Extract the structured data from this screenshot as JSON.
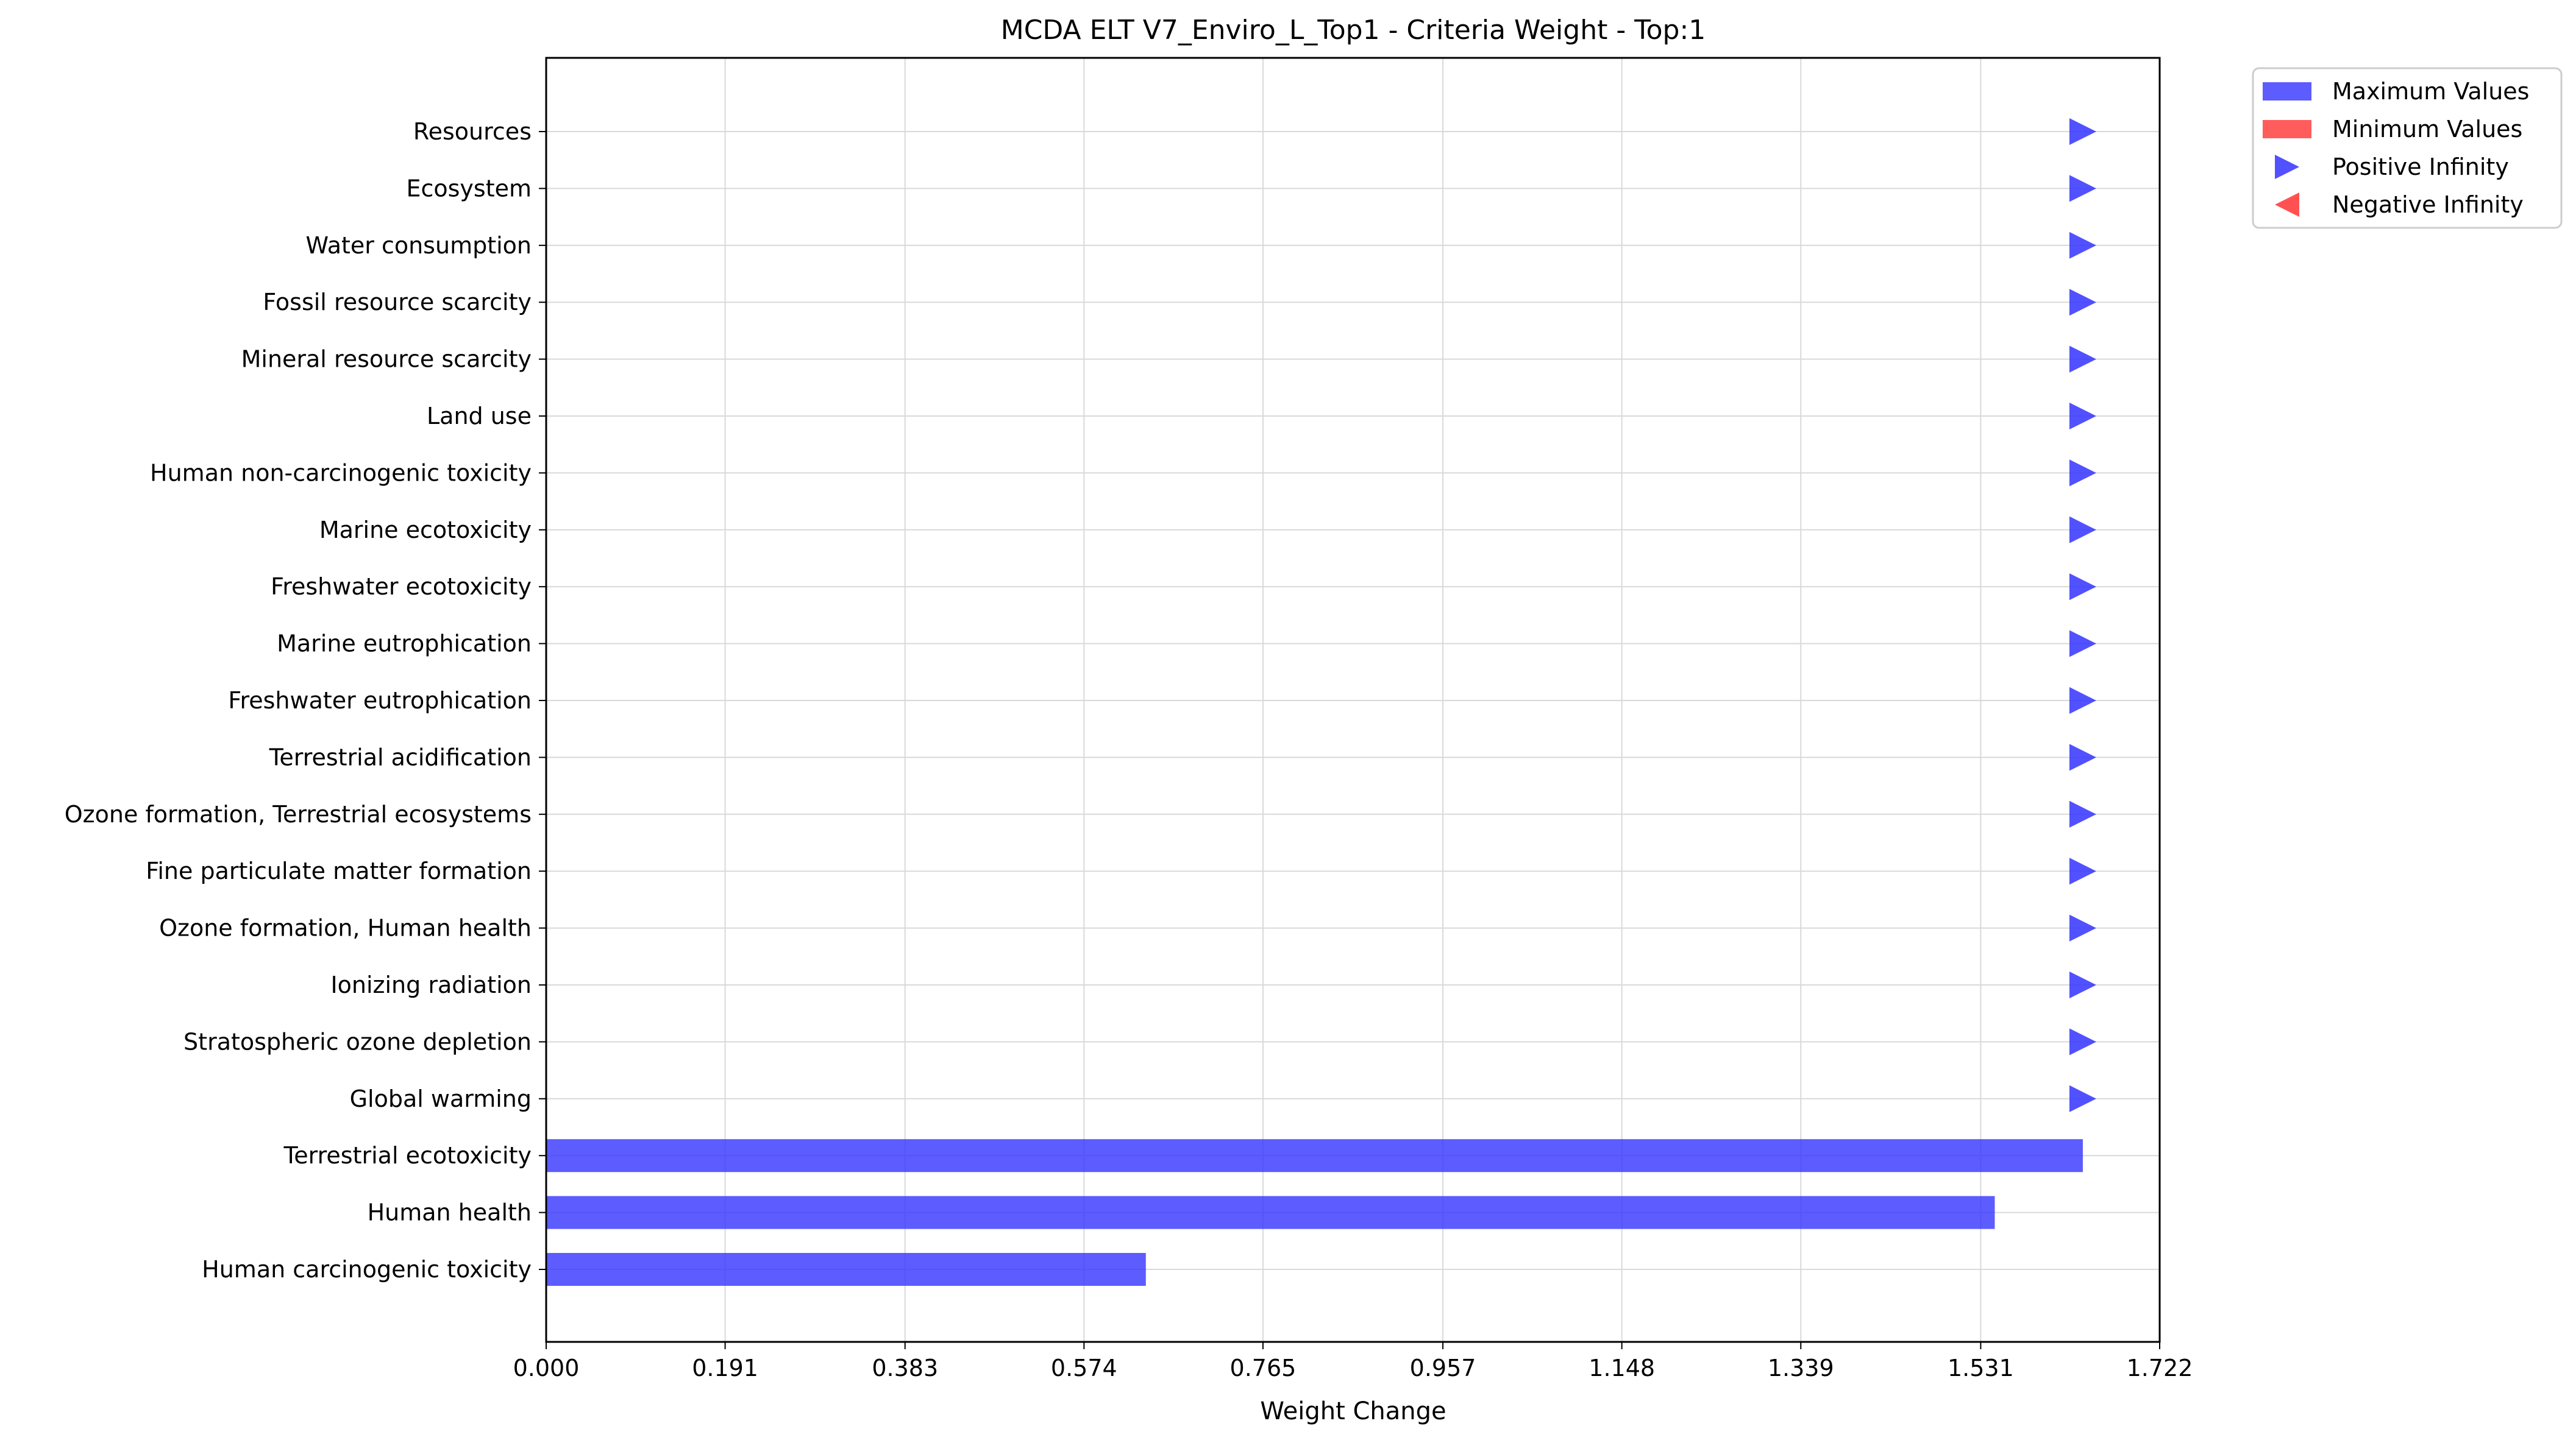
{
  "chart_data": {
    "type": "bar",
    "orientation": "horizontal",
    "title": "MCDA ELT V7_Enviro_L_Top1 - Criteria Weight - Top:1",
    "xlabel": "Weight Change",
    "ylabel": "",
    "xlim": [
      0,
      1.722
    ],
    "xticks": [
      "0.000",
      "0.191",
      "0.383",
      "0.574",
      "0.765",
      "0.957",
      "1.148",
      "1.339",
      "1.531",
      "1.722"
    ],
    "grid": true,
    "legend_position": "outside-top-right",
    "categories": [
      "Human carcinogenic toxicity",
      "Human health",
      "Terrestrial ecotoxicity",
      "Global warming",
      "Stratospheric ozone depletion",
      "Ionizing radiation",
      "Ozone formation, Human health",
      "Fine particulate matter formation",
      "Ozone formation, Terrestrial ecosystems",
      "Terrestrial acidification",
      "Freshwater eutrophication",
      "Marine eutrophication",
      "Freshwater ecotoxicity",
      "Marine ecotoxicity",
      "Human non-carcinogenic toxicity",
      "Land use",
      "Mineral resource scarcity",
      "Fossil resource scarcity",
      "Water consumption",
      "Ecosystem",
      "Resources"
    ],
    "max_values": [
      0.64,
      1.546,
      1.64,
      "inf",
      "inf",
      "inf",
      "inf",
      "inf",
      "inf",
      "inf",
      "inf",
      "inf",
      "inf",
      "inf",
      "inf",
      "inf",
      "inf",
      "inf",
      "inf",
      "inf",
      "inf"
    ],
    "min_values": [
      0,
      0,
      0,
      0,
      0,
      0,
      0,
      0,
      0,
      0,
      0,
      0,
      0,
      0,
      0,
      0,
      0,
      0,
      0,
      0,
      0
    ],
    "infinity_marker_x": 1.64,
    "legend": [
      {
        "label": "Maximum Values",
        "symbol": "bar",
        "color": "#3333ff"
      },
      {
        "label": "Minimum Values",
        "symbol": "bar",
        "color": "#ff3333"
      },
      {
        "label": "Positive Infinity",
        "symbol": "triangle-right",
        "color": "#3333ff"
      },
      {
        "label": "Negative Infinity",
        "symbol": "triangle-left",
        "color": "#ff3333"
      }
    ],
    "colors": {
      "max": "#3333ff",
      "min": "#ff3333",
      "grid": "#d9d9d9",
      "axis": "#000000"
    }
  }
}
